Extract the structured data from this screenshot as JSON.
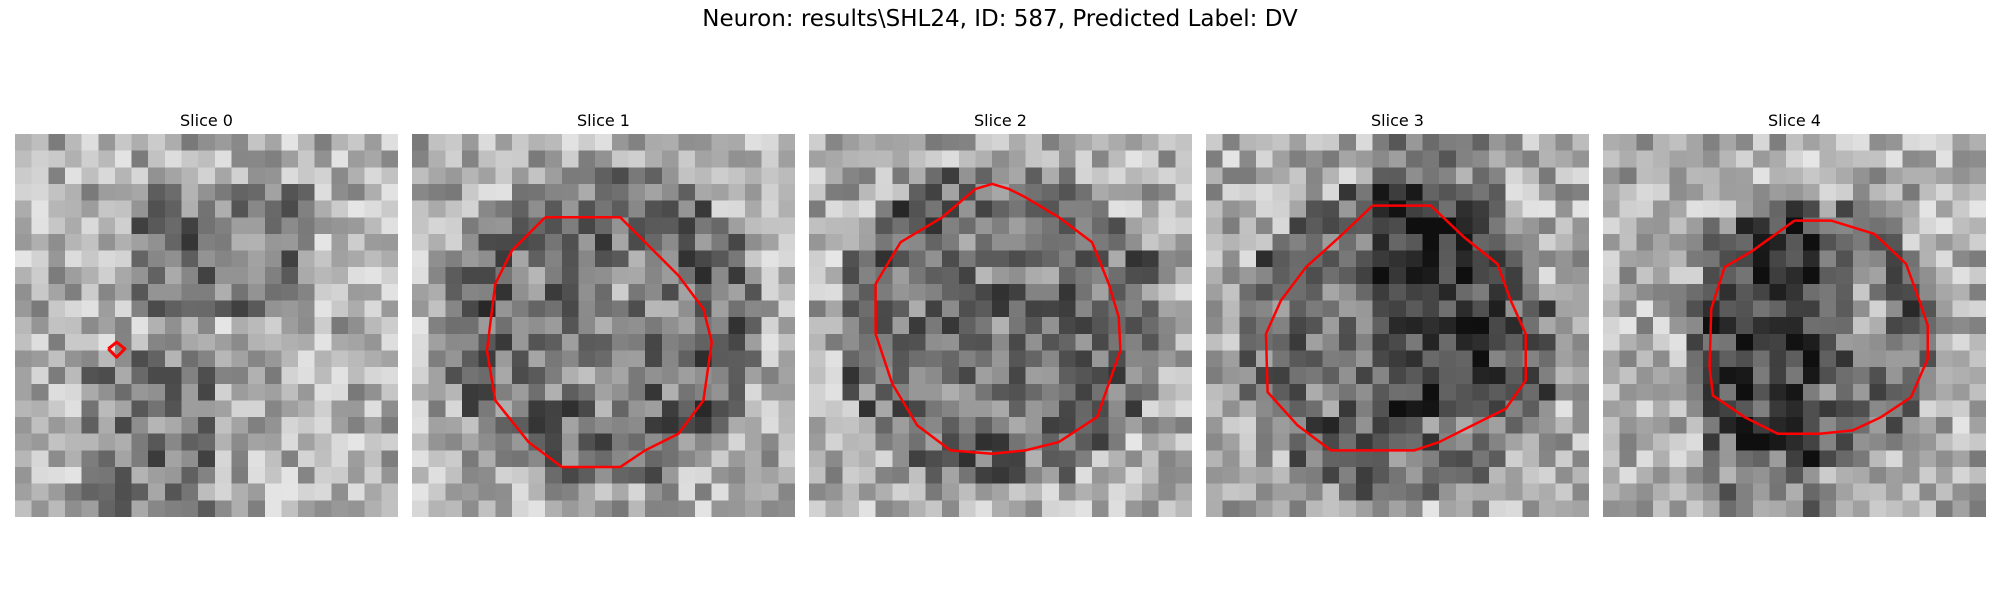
{
  "figure": {
    "suptitle": "Neuron: results\\SHL24, ID: 587, Predicted Label: DV"
  },
  "panels": [
    {
      "title": "Slice 0",
      "contour": "tiny-diamond"
    },
    {
      "title": "Slice 1",
      "contour": "roi-outline"
    },
    {
      "title": "Slice 2",
      "contour": "roi-outline"
    },
    {
      "title": "Slice 3",
      "contour": "roi-outline"
    },
    {
      "title": "Slice 4",
      "contour": "roi-outline"
    }
  ],
  "colors": {
    "contour": "#ff0000",
    "background": "#ffffff"
  },
  "image": {
    "colormap": "grayscale",
    "pixel_grid": "23x23"
  }
}
